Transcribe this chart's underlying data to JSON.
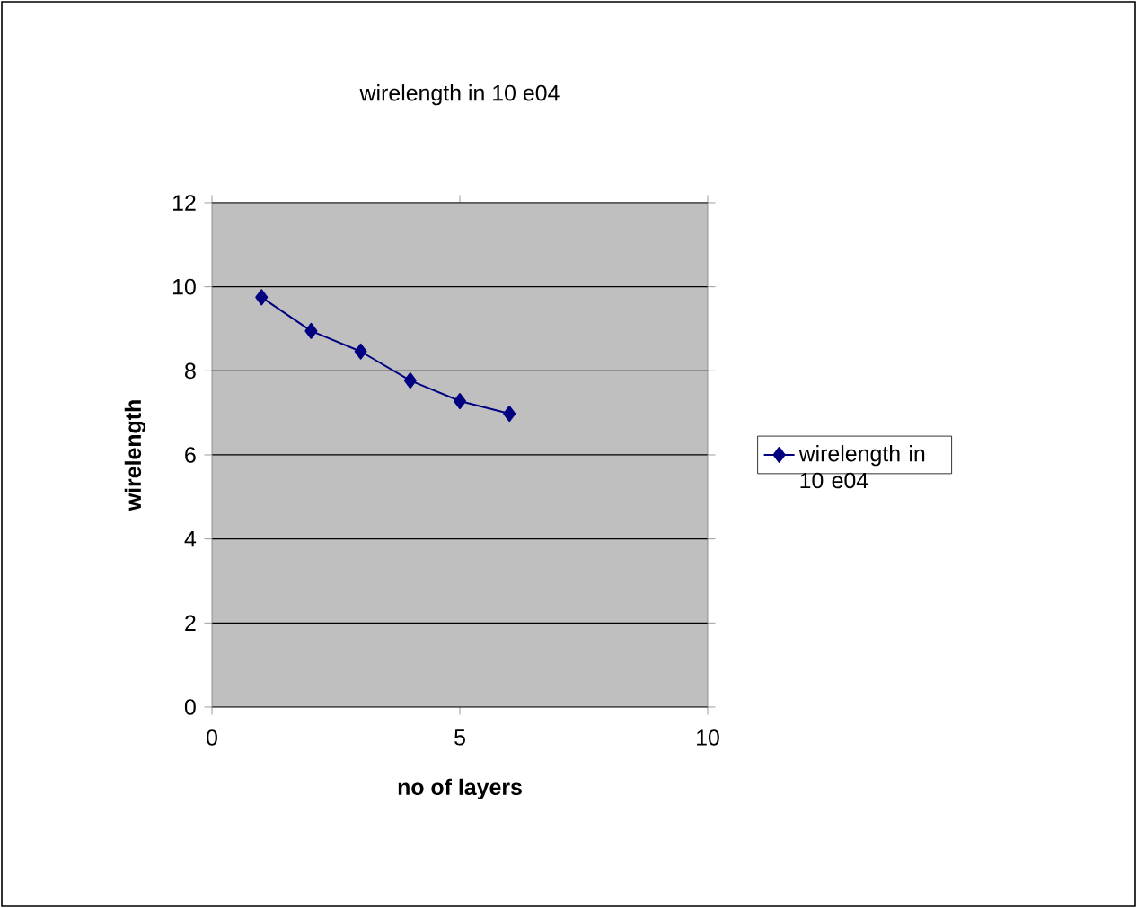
{
  "chart_data": {
    "type": "line",
    "title": "wirelength in 10 e04",
    "xlabel": "no of layers",
    "ylabel": "wirelength",
    "x": [
      1,
      2,
      3,
      4,
      5,
      6
    ],
    "series": [
      {
        "name": "wirelength in 10 e04",
        "color": "#000080",
        "values": [
          9.75,
          8.95,
          8.46,
          7.77,
          7.28,
          6.98
        ]
      }
    ],
    "xlim": [
      0,
      10
    ],
    "ylim": [
      0,
      12
    ],
    "xticks": [
      0,
      5,
      10
    ],
    "yticks": [
      0,
      2,
      4,
      6,
      8,
      10,
      12
    ],
    "grid": "y",
    "legend": "right",
    "marker": "diamond"
  }
}
